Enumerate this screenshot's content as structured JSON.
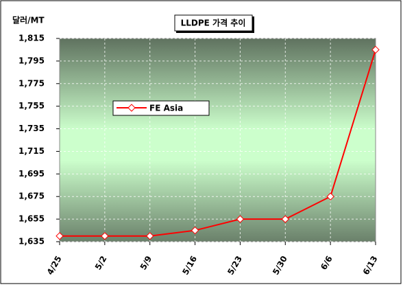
{
  "chart_data": {
    "type": "line",
    "title": "LLDPE 가격 추이",
    "y_label": "달러/MT",
    "categories": [
      "4/25",
      "5/2",
      "5/9",
      "5/16",
      "5/23",
      "5/30",
      "6/6",
      "6/13"
    ],
    "series": [
      {
        "name": "FE Asia",
        "color": "#ff0000",
        "values": [
          1640,
          1640,
          1640,
          1645,
          1655,
          1655,
          1675,
          1805
        ]
      }
    ],
    "ylim": [
      1635,
      1815
    ],
    "yticks": [
      {
        "value": 1635,
        "label": "1,635"
      },
      {
        "value": 1655,
        "label": "1,655"
      },
      {
        "value": 1675,
        "label": "1,675"
      },
      {
        "value": 1695,
        "label": "1,695"
      },
      {
        "value": 1715,
        "label": "1,715"
      },
      {
        "value": 1735,
        "label": "1,735"
      },
      {
        "value": 1755,
        "label": "1,755"
      },
      {
        "value": 1775,
        "label": "1,775"
      },
      {
        "value": 1795,
        "label": "1,795"
      },
      {
        "value": 1815,
        "label": "1,815"
      }
    ],
    "grid": true
  }
}
